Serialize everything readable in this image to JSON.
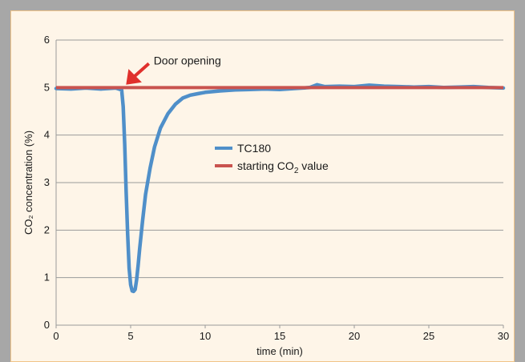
{
  "chart_data": {
    "type": "line",
    "title": "",
    "xlabel": "time (min)",
    "ylabel": "CO₂ concentration (%)",
    "xlim": [
      0,
      30
    ],
    "ylim": [
      0,
      6
    ],
    "xticks": [
      "0",
      "5",
      "10",
      "15",
      "20",
      "25",
      "30"
    ],
    "yticks": [
      "0",
      "1",
      "2",
      "3",
      "4",
      "5",
      "6"
    ],
    "grid": "horizontal",
    "legend_position": "center",
    "annotation": {
      "text": "Door opening",
      "x": 4.5,
      "y": 5.0
    },
    "series": [
      {
        "name": "TC180",
        "color": "#4f8fc9",
        "x": [
          0,
          1,
          2,
          3,
          3.5,
          4,
          4.2,
          4.4,
          4.5,
          4.6,
          4.7,
          4.8,
          4.9,
          5.0,
          5.1,
          5.2,
          5.3,
          5.4,
          5.5,
          5.6,
          5.8,
          6.0,
          6.3,
          6.6,
          7.0,
          7.5,
          8.0,
          8.5,
          9.0,
          9.5,
          10,
          11,
          12,
          13,
          14,
          15,
          16,
          17,
          17.5,
          18,
          19,
          20,
          21,
          22,
          23,
          24,
          25,
          26,
          27,
          28,
          29,
          30
        ],
        "y": [
          4.98,
          4.97,
          4.99,
          4.97,
          4.98,
          4.99,
          4.97,
          4.95,
          4.6,
          3.8,
          2.8,
          1.9,
          1.2,
          0.85,
          0.72,
          0.71,
          0.75,
          0.95,
          1.25,
          1.6,
          2.2,
          2.75,
          3.3,
          3.75,
          4.15,
          4.45,
          4.65,
          4.78,
          4.84,
          4.87,
          4.9,
          4.93,
          4.95,
          4.96,
          4.97,
          4.96,
          4.98,
          5.0,
          5.06,
          5.02,
          5.03,
          5.02,
          5.05,
          5.03,
          5.02,
          5.01,
          5.02,
          5.0,
          5.01,
          5.02,
          5.0,
          4.99
        ]
      },
      {
        "name": "starting CO₂ value",
        "color": "#c9534f",
        "x": [
          0,
          30
        ],
        "y": [
          5.0,
          5.0
        ]
      }
    ]
  },
  "legend": {
    "item1": "TC180",
    "item2_prefix": "starting CO",
    "item2_sub": "2",
    "item2_suffix": " value"
  }
}
